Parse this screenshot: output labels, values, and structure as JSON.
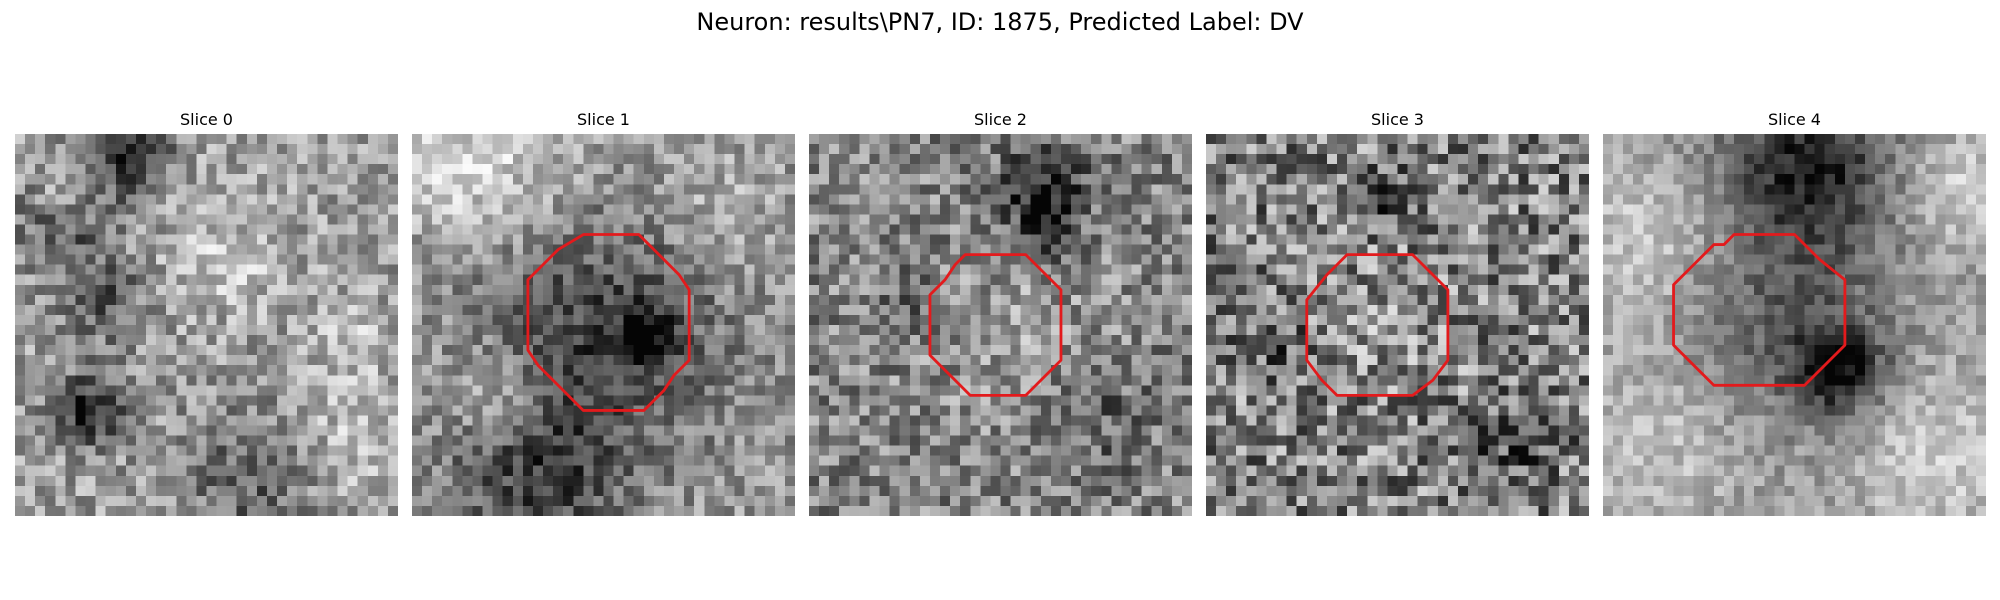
{
  "figure": {
    "title": "Neuron: results\\PN7, ID: 1875, Predicted Label: DV",
    "colormap": "grayscale",
    "contour_color": "#e31a1c"
  },
  "panels": [
    {
      "title": "Slice 0",
      "contour": null
    },
    {
      "title": "Slice 1",
      "contour": [
        [
          17,
          10
        ],
        [
          22.5,
          10
        ],
        [
          25,
          12.5
        ],
        [
          26.5,
          14
        ],
        [
          27.5,
          15.5
        ],
        [
          27.5,
          22.5
        ],
        [
          26,
          24
        ],
        [
          25,
          25.5
        ],
        [
          23,
          27.5
        ],
        [
          17,
          27.5
        ],
        [
          14.5,
          25
        ],
        [
          12.5,
          23
        ],
        [
          11.5,
          21.5
        ],
        [
          11.5,
          14.5
        ],
        [
          13,
          13
        ],
        [
          14.5,
          11.5
        ]
      ]
    },
    {
      "title": "Slice 2",
      "contour": [
        [
          15.5,
          12
        ],
        [
          21.5,
          12
        ],
        [
          22.5,
          13
        ],
        [
          24,
          14.5
        ],
        [
          25,
          15.5
        ],
        [
          25,
          22.5
        ],
        [
          23.5,
          24
        ],
        [
          22.5,
          25
        ],
        [
          21.5,
          26
        ],
        [
          16,
          26
        ],
        [
          14.5,
          24.5
        ],
        [
          13,
          23
        ],
        [
          12,
          22
        ],
        [
          12,
          16
        ],
        [
          13.5,
          14.5
        ],
        [
          14.5,
          13
        ]
      ]
    },
    {
      "title": "Slice 3",
      "contour": [
        [
          14,
          12
        ],
        [
          20.5,
          12
        ],
        [
          22.5,
          14
        ],
        [
          24,
          15.5
        ],
        [
          24,
          22.5
        ],
        [
          22.5,
          24.5
        ],
        [
          20.5,
          26
        ],
        [
          13,
          26
        ],
        [
          11.5,
          24.5
        ],
        [
          10,
          22.5
        ],
        [
          10,
          16.5
        ],
        [
          12,
          14
        ],
        [
          13,
          13
        ]
      ]
    },
    {
      "title": "Slice 4",
      "contour": [
        [
          13,
          10
        ],
        [
          19,
          10
        ],
        [
          21.5,
          12.5
        ],
        [
          24,
          14.5
        ],
        [
          24,
          21
        ],
        [
          22,
          23
        ],
        [
          20,
          25
        ],
        [
          11,
          25
        ],
        [
          9,
          23
        ],
        [
          7,
          21
        ],
        [
          7,
          15
        ],
        [
          9,
          13
        ],
        [
          11,
          11
        ],
        [
          12,
          11
        ]
      ]
    }
  ]
}
